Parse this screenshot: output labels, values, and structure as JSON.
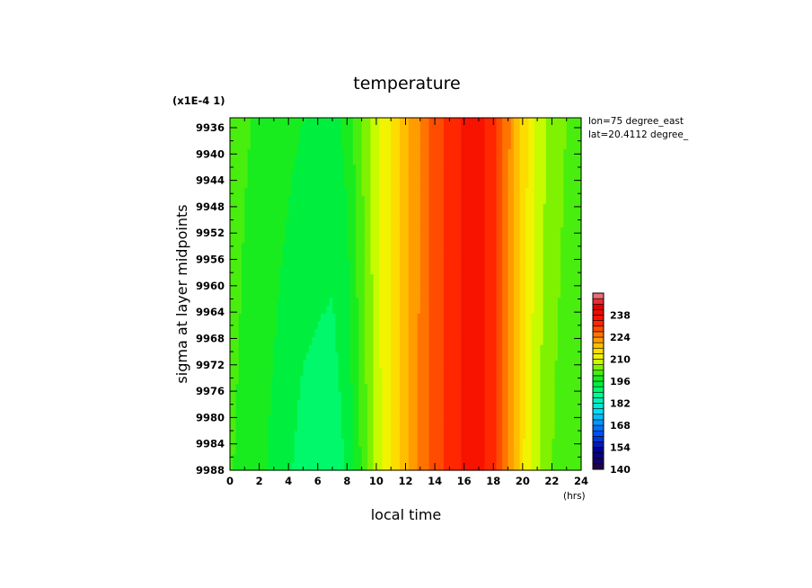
{
  "chart_data": {
    "type": "heatmap",
    "title": "temperature",
    "xlabel": "local time",
    "xunits": "(hrs)",
    "ylabel": "sigma at layer midpoints",
    "yscale_note": "(x1E-4 1)",
    "annotations": [
      "lon=75 degree_east",
      "lat=20.4112 degree_"
    ],
    "x_ticks": [
      "0",
      "2",
      "4",
      "6",
      "8",
      "10",
      "12",
      "14",
      "16",
      "18",
      "20",
      "22",
      "24"
    ],
    "y_ticks": [
      "9936",
      "9940",
      "9944",
      "9948",
      "9952",
      "9956",
      "9960",
      "9964",
      "9968",
      "9972",
      "9976",
      "9980",
      "9984",
      "9988"
    ],
    "xlim": [
      0,
      24
    ],
    "ylim": [
      9988,
      9934.5
    ],
    "colorbar": {
      "ticks": [
        "238",
        "224",
        "210",
        "196",
        "182",
        "168",
        "154",
        "140"
      ],
      "range": [
        140,
        252
      ],
      "step": 3.5
    },
    "x": [
      0,
      1,
      2,
      3,
      4,
      5,
      6,
      7,
      8,
      9,
      10,
      11,
      12,
      13,
      14,
      15,
      16,
      17,
      18,
      19,
      20,
      21,
      22,
      23,
      24
    ],
    "y": [
      9934.5,
      9988
    ],
    "values": [
      [
        202,
        200,
        199,
        198,
        197,
        196,
        196,
        195,
        197,
        203,
        209,
        214,
        219,
        224,
        229,
        232,
        235,
        236,
        233,
        225,
        216,
        209,
        205,
        203,
        202
      ],
      [
        200,
        198,
        197,
        195,
        193,
        191,
        190,
        190,
        193,
        200,
        208,
        214,
        219,
        225,
        229,
        232,
        235,
        236,
        232,
        224,
        214,
        207,
        203,
        201,
        200
      ]
    ]
  }
}
